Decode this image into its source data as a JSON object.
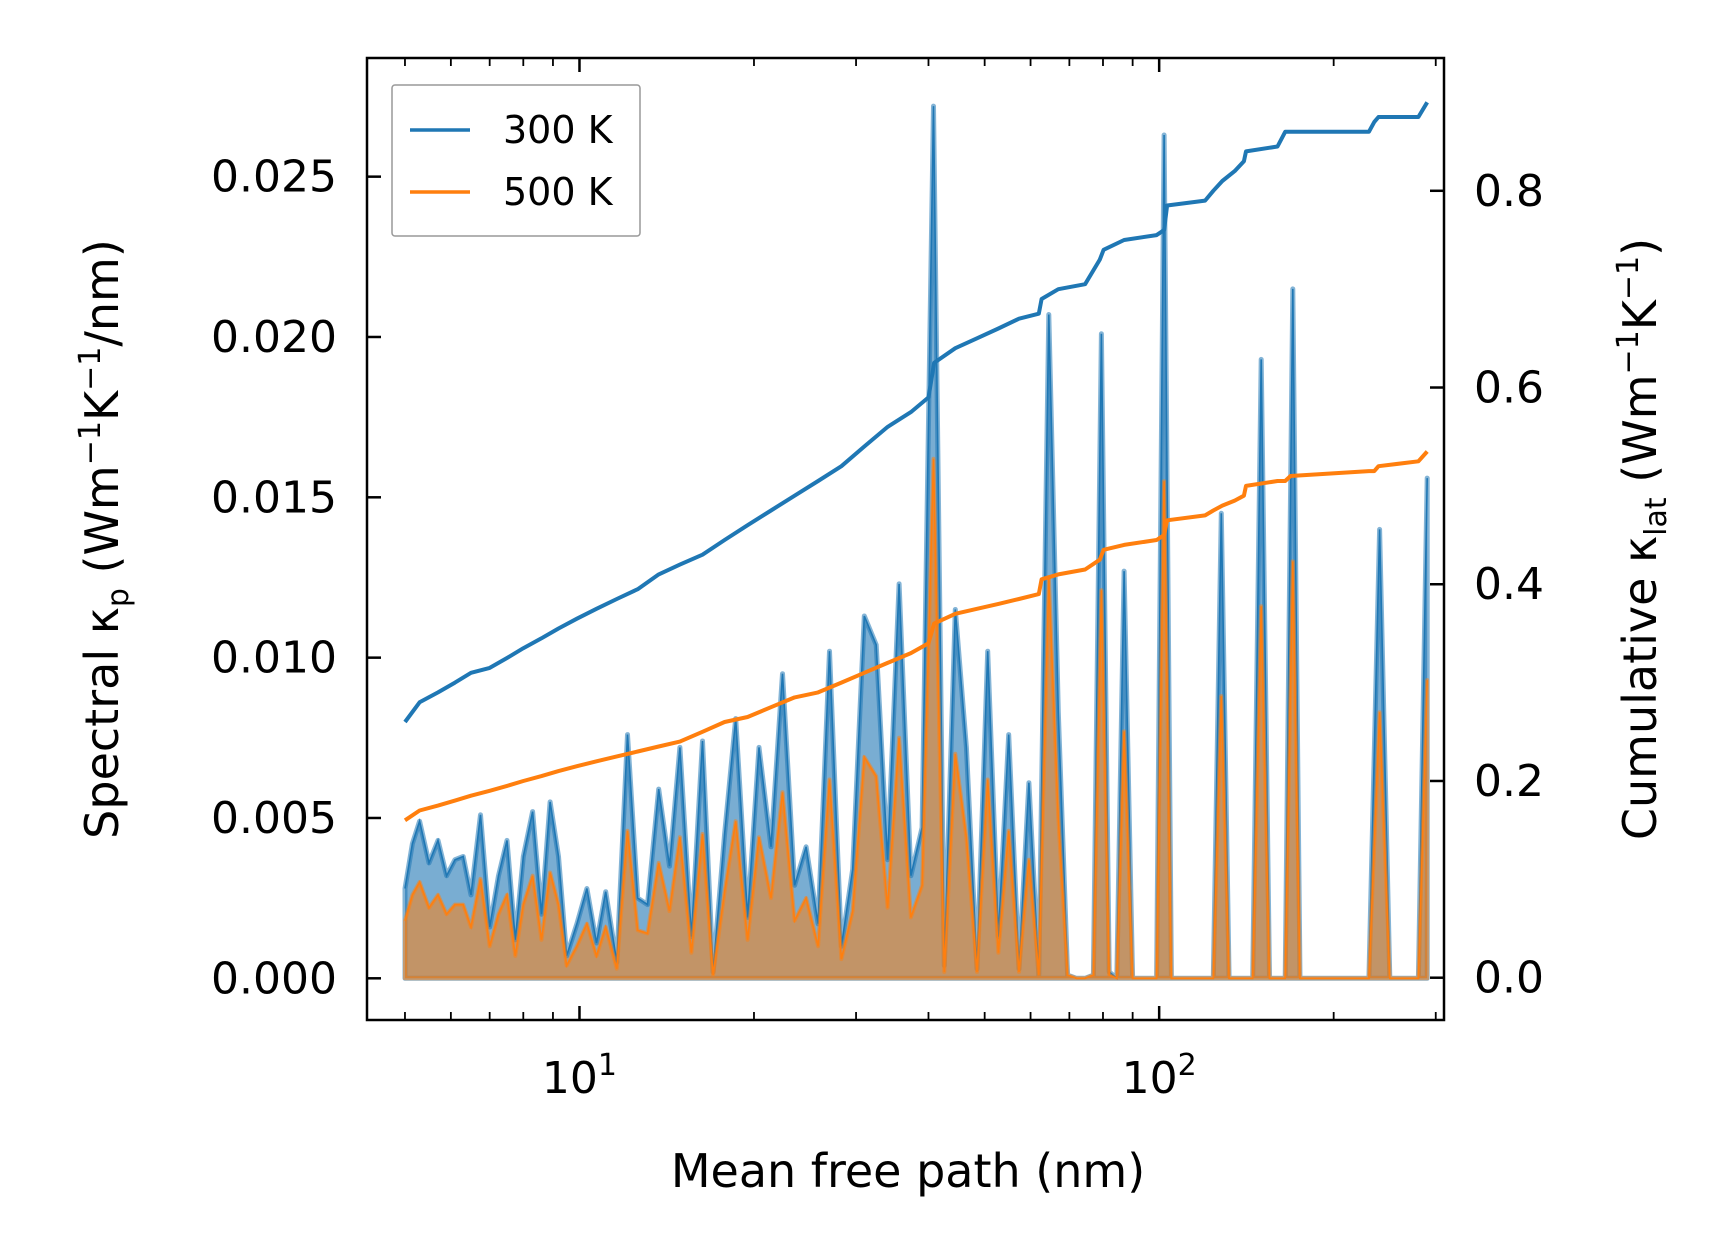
{
  "chart_data": {
    "type": "line",
    "xlabel": "Mean free path (nm)",
    "ylabel_left": {
      "text": "Spectral κ",
      "sub": "p",
      "unit_pre": " (Wm",
      "sup1": "−1",
      "unit_mid": "K",
      "sup2": "−1",
      "unit_post": "/nm)"
    },
    "ylabel_right": {
      "text": "Cumulative κ",
      "sub": "lat",
      "unit_pre": " (Wm",
      "sup1": "−1",
      "unit_mid": "K",
      "sup2": "−1",
      "unit_post": ")"
    },
    "xscale": "log",
    "xlim": [
      4.3,
      310
    ],
    "ylim_left": [
      -0.0013,
      0.0287
    ],
    "ylim_right": [
      -0.043,
      0.935
    ],
    "x_ticks": [
      {
        "value": 10,
        "base": "10",
        "exp": "1"
      },
      {
        "value": 100,
        "base": "10",
        "exp": "2"
      }
    ],
    "y_ticks_left": [
      "0.000",
      "0.005",
      "0.010",
      "0.015",
      "0.020",
      "0.025"
    ],
    "y_tick_values_left": [
      0,
      0.005,
      0.01,
      0.015,
      0.02,
      0.025
    ],
    "y_ticks_right": [
      "0.0",
      "0.2",
      "0.4",
      "0.6",
      "0.8"
    ],
    "y_tick_values_right": [
      0,
      0.2,
      0.4,
      0.6,
      0.8
    ],
    "legend": {
      "position": "top-left",
      "entries": [
        "300 K",
        "500 K"
      ]
    },
    "colors": {
      "300 K": "#1f77b4",
      "500 K": "#ff7f0e"
    },
    "spectral_x": [
      5.0,
      5.15,
      5.3,
      5.5,
      5.7,
      5.9,
      6.1,
      6.3,
      6.5,
      6.75,
      7.0,
      7.25,
      7.5,
      7.75,
      8.0,
      8.3,
      8.6,
      8.9,
      9.2,
      9.5,
      9.9,
      10.3,
      10.7,
      11.1,
      11.6,
      12.1,
      12.6,
      13.1,
      13.7,
      14.3,
      14.9,
      15.6,
      16.3,
      17.0,
      17.8,
      18.6,
      19.5,
      20.4,
      21.4,
      22.4,
      23.5,
      24.6,
      25.8,
      27.0,
      28.3,
      29.6,
      31.0,
      32.5,
      34.0,
      35.6,
      37.3,
      39.0,
      40.8,
      42.6,
      44.5,
      46.5,
      48.5,
      50.6,
      52.8,
      55.0,
      57.3,
      59.6,
      62.0,
      64.5,
      67.0,
      69.5,
      72.0,
      74.5,
      77.0,
      79.5,
      82.0,
      84.5,
      87.0,
      90.0,
      93.0,
      96.0,
      99.0,
      102.0,
      105.0,
      108.5,
      112.0,
      116.0,
      120.0,
      124.0,
      128.0,
      132.0,
      136.0,
      140.0,
      145.0,
      150.0,
      155.0,
      160.0,
      165.0,
      170.0,
      175.0,
      180.0,
      190.0,
      200.0,
      210.0,
      220.0,
      230.0,
      240.0,
      250.0,
      260.0,
      270.0,
      280.0,
      290.0
    ],
    "spectral_300K": [
      0.0028,
      0.0042,
      0.0049,
      0.0036,
      0.0043,
      0.0032,
      0.0037,
      0.0038,
      0.0026,
      0.0051,
      0.0016,
      0.0032,
      0.0043,
      0.0012,
      0.0038,
      0.0052,
      0.002,
      0.0055,
      0.0038,
      0.0007,
      0.0017,
      0.0028,
      0.0011,
      0.0027,
      0.0005,
      0.0076,
      0.0025,
      0.0023,
      0.0059,
      0.0035,
      0.0072,
      0.0013,
      0.0074,
      0.0002,
      0.0045,
      0.0081,
      0.0019,
      0.0072,
      0.0041,
      0.0095,
      0.0029,
      0.0041,
      0.0017,
      0.0102,
      0.001,
      0.0034,
      0.0113,
      0.0104,
      0.0037,
      0.0123,
      0.0032,
      0.0047,
      0.0272,
      0.0004,
      0.0115,
      0.0072,
      0.0003,
      0.0102,
      0.0013,
      0.0076,
      0.0003,
      0.0061,
      0.0001,
      0.0207,
      0.0083,
      0.0001,
      0.0,
      0.0,
      0.0001,
      0.0201,
      0.0002,
      0.0,
      0.0127,
      0.0,
      0.0,
      0.0,
      0.0,
      0.0263,
      0.0,
      0.0,
      0.0,
      0.0,
      0.0,
      0.0,
      0.0145,
      0.0,
      0.0,
      0.0,
      0.0,
      0.0193,
      0.0,
      0.0,
      0.0,
      0.0215,
      0.0,
      0.0,
      0.0,
      0.0,
      0.0,
      0.0,
      0.0,
      0.014,
      0.0,
      0.0,
      0.0,
      0.0,
      0.0156
    ],
    "spectral_500K": [
      0.0018,
      0.0026,
      0.003,
      0.0022,
      0.0026,
      0.002,
      0.0023,
      0.0023,
      0.0016,
      0.0031,
      0.001,
      0.002,
      0.0026,
      0.0007,
      0.0023,
      0.0032,
      0.0012,
      0.0033,
      0.0023,
      0.0004,
      0.001,
      0.0017,
      0.0007,
      0.0016,
      0.0003,
      0.0046,
      0.0015,
      0.0014,
      0.0036,
      0.0021,
      0.0044,
      0.0008,
      0.0045,
      0.0001,
      0.0027,
      0.0049,
      0.0012,
      0.0044,
      0.0025,
      0.0058,
      0.0018,
      0.0025,
      0.001,
      0.0062,
      0.0006,
      0.0021,
      0.0069,
      0.0063,
      0.0022,
      0.0075,
      0.0019,
      0.0029,
      0.0162,
      0.0002,
      0.007,
      0.0044,
      0.0002,
      0.0062,
      0.0008,
      0.0046,
      0.0002,
      0.0037,
      0.0001,
      0.0125,
      0.005,
      0.0001,
      0.0,
      0.0,
      0.0001,
      0.0121,
      0.0001,
      0.0,
      0.0077,
      0.0,
      0.0,
      0.0,
      0.0,
      0.0155,
      0.0,
      0.0,
      0.0,
      0.0,
      0.0,
      0.0,
      0.0088,
      0.0,
      0.0,
      0.0,
      0.0,
      0.0116,
      0.0,
      0.0,
      0.0,
      0.013,
      0.0,
      0.0,
      0.0,
      0.0,
      0.0,
      0.0,
      0.0,
      0.0083,
      0.0,
      0.0,
      0.0,
      0.0,
      0.0093
    ],
    "cumulative_x": [
      5.0,
      5.3,
      5.7,
      6.1,
      6.5,
      7.0,
      7.5,
      8.0,
      8.6,
      9.2,
      9.9,
      10.7,
      11.6,
      12.6,
      13.7,
      14.9,
      16.3,
      17.8,
      19.5,
      21.4,
      23.5,
      25.8,
      28.3,
      31.0,
      34.0,
      37.3,
      40.0,
      40.9,
      44.5,
      48.5,
      52.8,
      57.3,
      62.0,
      62.7,
      67.0,
      74.5,
      79.0,
      80.2,
      87.0,
      99.0,
      102.0,
      103.2,
      120.0,
      124.0,
      128.5,
      135.0,
      140.0,
      141.2,
      160.0,
      165.0,
      168.5,
      230.0,
      235.0,
      239.0,
      280.0,
      290.0
    ],
    "cumulative_300K": [
      0.26,
      0.28,
      0.29,
      0.3,
      0.31,
      0.315,
      0.325,
      0.335,
      0.345,
      0.355,
      0.365,
      0.375,
      0.385,
      0.395,
      0.41,
      0.42,
      0.43,
      0.445,
      0.46,
      0.475,
      0.49,
      0.505,
      0.52,
      0.54,
      0.56,
      0.575,
      0.59,
      0.625,
      0.64,
      0.65,
      0.66,
      0.67,
      0.675,
      0.69,
      0.7,
      0.705,
      0.73,
      0.74,
      0.75,
      0.755,
      0.76,
      0.785,
      0.79,
      0.8,
      0.81,
      0.82,
      0.83,
      0.84,
      0.845,
      0.86,
      0.86,
      0.86,
      0.87,
      0.875,
      0.875,
      0.89
    ],
    "cumulative_500K": [
      0.16,
      0.17,
      0.175,
      0.18,
      0.185,
      0.19,
      0.195,
      0.2,
      0.205,
      0.21,
      0.215,
      0.22,
      0.225,
      0.23,
      0.235,
      0.24,
      0.25,
      0.26,
      0.265,
      0.275,
      0.285,
      0.29,
      0.3,
      0.31,
      0.32,
      0.33,
      0.34,
      0.36,
      0.37,
      0.375,
      0.38,
      0.385,
      0.39,
      0.405,
      0.41,
      0.415,
      0.425,
      0.435,
      0.44,
      0.445,
      0.45,
      0.465,
      0.47,
      0.475,
      0.48,
      0.485,
      0.49,
      0.5,
      0.505,
      0.505,
      0.51,
      0.515,
      0.515,
      0.52,
      0.525,
      0.535
    ]
  }
}
